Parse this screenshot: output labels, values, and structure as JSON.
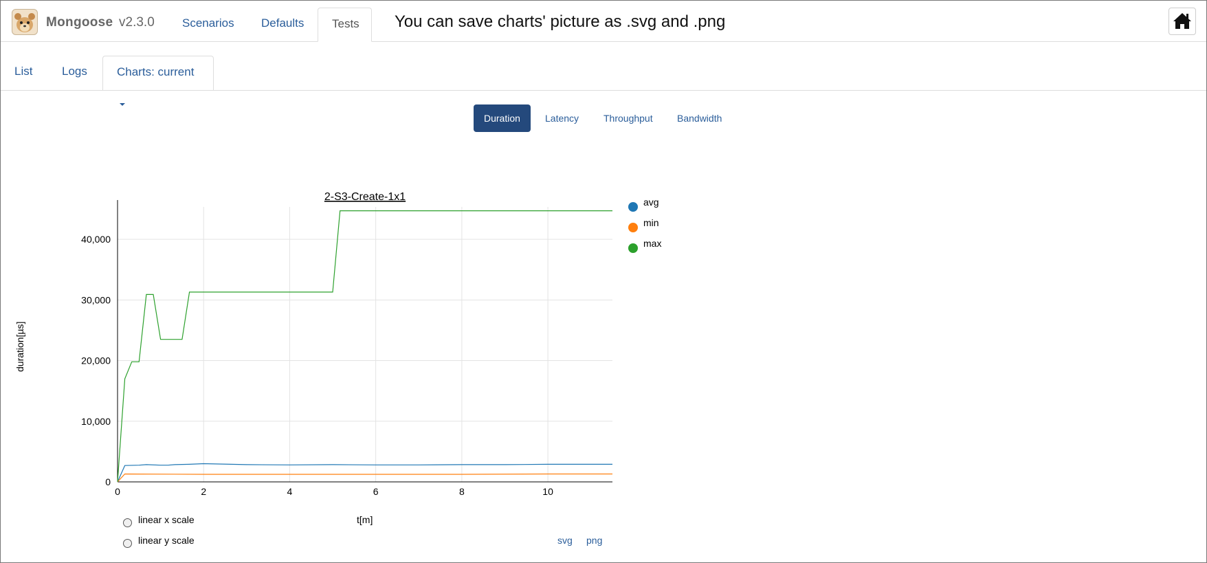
{
  "header": {
    "brand": "Mongoose",
    "version": "v2.3.0",
    "tabs": [
      {
        "label": "Scenarios",
        "active": false
      },
      {
        "label": "Defaults",
        "active": false
      },
      {
        "label": "Tests",
        "active": true
      }
    ],
    "hint": "You can save charts' picture as .svg and .png",
    "home_icon": "home-icon"
  },
  "subnav": {
    "tabs": [
      {
        "label": "List",
        "active": false
      },
      {
        "label": "Logs",
        "active": false
      },
      {
        "label": "Charts: current",
        "active": true
      }
    ]
  },
  "metrics": {
    "tabs": [
      {
        "label": "Duration",
        "active": true
      },
      {
        "label": "Latency",
        "active": false
      },
      {
        "label": "Throughput",
        "active": false
      },
      {
        "label": "Bandwidth",
        "active": false
      }
    ]
  },
  "chart_data": {
    "type": "line",
    "title": "2-S3-Create-1x1",
    "xlabel": "t[m]",
    "ylabel": "duration[µs]",
    "xlim": [
      0,
      11.5
    ],
    "ylim": [
      0,
      45000
    ],
    "xticks": [
      0,
      2,
      4,
      6,
      8,
      10
    ],
    "yticks": [
      0,
      10000,
      20000,
      30000,
      40000
    ],
    "ytick_labels": [
      "0",
      "10,000",
      "20,000",
      "30,000",
      "40,000"
    ],
    "grid": true,
    "legend_position": "right",
    "series": [
      {
        "name": "avg",
        "color": "#1f77b4",
        "x": [
          0,
          0.17,
          0.5,
          0.67,
          1.0,
          1.17,
          1.33,
          1.67,
          2.0,
          3.0,
          4.0,
          5.0,
          6.0,
          7.0,
          8.0,
          9.0,
          10.0,
          11.5
        ],
        "y": [
          0,
          2700,
          2750,
          2850,
          2750,
          2750,
          2850,
          2900,
          3000,
          2850,
          2800,
          2850,
          2800,
          2800,
          2850,
          2850,
          2900,
          2900
        ]
      },
      {
        "name": "min",
        "color": "#ff7f0e",
        "x": [
          0,
          0.17,
          2.0,
          4.0,
          6.0,
          8.0,
          10.0,
          11.5
        ],
        "y": [
          0,
          1300,
          1250,
          1250,
          1250,
          1250,
          1300,
          1300
        ]
      },
      {
        "name": "max",
        "color": "#2ca02c",
        "x": [
          0,
          0.17,
          0.33,
          0.5,
          0.67,
          0.83,
          1.0,
          1.5,
          1.67,
          2.0,
          5.0,
          5.17,
          11.5
        ],
        "y": [
          0,
          17000,
          19800,
          19800,
          30900,
          30900,
          23500,
          23500,
          31300,
          31300,
          31300,
          44700,
          44700
        ]
      }
    ]
  },
  "controls": {
    "linear_x_label": "linear x scale",
    "linear_y_label": "linear y scale",
    "svg_label": "svg",
    "png_label": "png"
  }
}
